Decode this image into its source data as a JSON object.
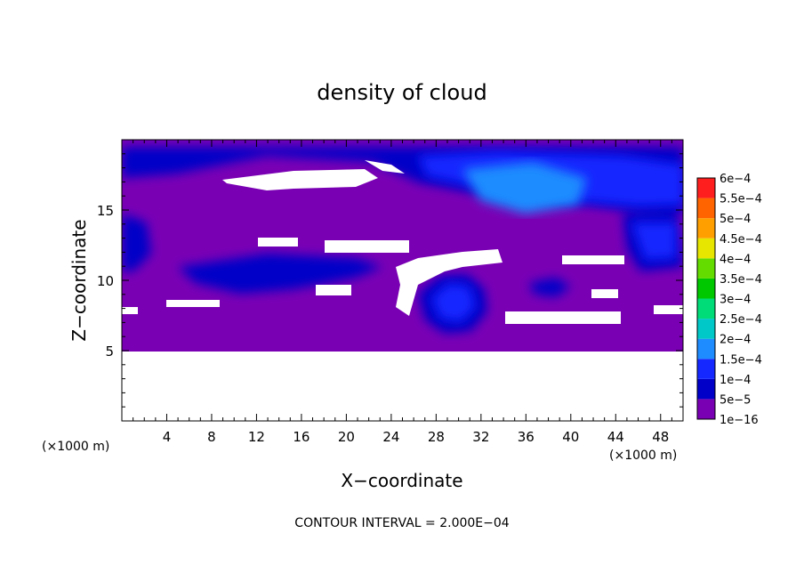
{
  "chart_data": {
    "type": "heatmap",
    "title": "density of cloud",
    "xlabel": "X−coordinate",
    "ylabel": "Z−coordinate",
    "x_unit_left": "(×1000 m)",
    "x_unit_right": "(×1000 m)",
    "footer": "CONTOUR INTERVAL = 2.000E−04",
    "xlim": [
      0,
      50
    ],
    "ylim": [
      0,
      20
    ],
    "x_ticks": [
      4,
      8,
      12,
      16,
      20,
      24,
      28,
      32,
      36,
      40,
      44,
      48
    ],
    "y_ticks": [
      5,
      10,
      15
    ],
    "colorbar": {
      "labels": [
        "1e−16",
        "5e−5",
        "1e−4",
        "1.5e−4",
        "2e−4",
        "2.5e−4",
        "3e−4",
        "3.5e−4",
        "4e−4",
        "4.5e−4",
        "5e−4",
        "5.5e−4",
        "6e−4"
      ],
      "colors": [
        "#7a00b4",
        "#0000c8",
        "#1428ff",
        "#1e8cff",
        "#00c8c8",
        "#00dc78",
        "#00c800",
        "#64dc00",
        "#e6e600",
        "#ffa000",
        "#ff6400",
        "#ff1e1e",
        "#ff8c8c"
      ]
    },
    "regions": [
      {
        "level": "1e−16",
        "description_value": "background cloud density over z 5–20 km"
      },
      {
        "level": "5e−5",
        "x": [
          0,
          50
        ],
        "z": [
          10,
          19.5
        ]
      },
      {
        "level": "1e−4",
        "x": [
          28,
          30
        ],
        "z": [
          8,
          9.5
        ]
      },
      {
        "level": "1.5e−4",
        "x": [
          32,
          46
        ],
        "z": [
          14,
          18
        ]
      }
    ],
    "grid": false
  }
}
